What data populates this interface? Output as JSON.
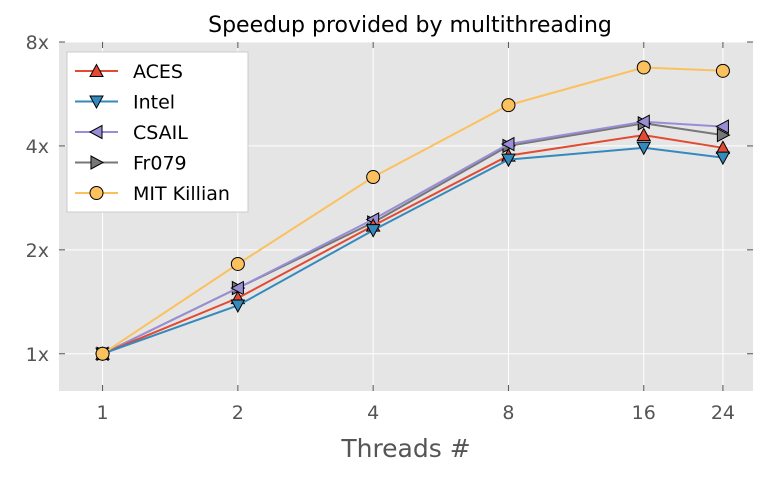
{
  "chart_data": {
    "type": "line",
    "title": "Speedup provided by multithreading",
    "xlabel": "Threads #",
    "ylabel": "",
    "x_scale": "log2",
    "y_scale": "log2",
    "x": [
      1,
      2,
      4,
      8,
      16,
      24
    ],
    "x_tick_labels": [
      "1",
      "2",
      "4",
      "8",
      "16",
      "24"
    ],
    "xlim": [
      0.8,
      28
    ],
    "y_ticks": [
      1,
      2,
      4,
      8
    ],
    "y_tick_labels": [
      "1x",
      "2x",
      "4x",
      "8x"
    ],
    "ylim": [
      0.78,
      8
    ],
    "grid": true,
    "legend_position": "top-left",
    "series": [
      {
        "name": "ACES",
        "color": "#e24a33",
        "marker": "triangle-up",
        "values": [
          1.0,
          1.45,
          2.35,
          3.75,
          4.3,
          3.95
        ]
      },
      {
        "name": "Intel",
        "color": "#348abd",
        "marker": "triangle-down",
        "values": [
          1.0,
          1.38,
          2.28,
          3.65,
          3.95,
          3.7
        ]
      },
      {
        "name": "CSAIL",
        "color": "#988ed5",
        "marker": "triangle-left",
        "values": [
          1.0,
          1.55,
          2.45,
          4.05,
          4.7,
          4.55
        ]
      },
      {
        "name": "Fr079",
        "color": "#777777",
        "marker": "triangle-right",
        "values": [
          1.0,
          1.55,
          2.4,
          4.0,
          4.65,
          4.3
        ]
      },
      {
        "name": "MIT Killian",
        "color": "#fbc15e",
        "marker": "circle",
        "values": [
          1.0,
          1.82,
          3.25,
          5.25,
          6.75,
          6.6
        ]
      }
    ]
  }
}
